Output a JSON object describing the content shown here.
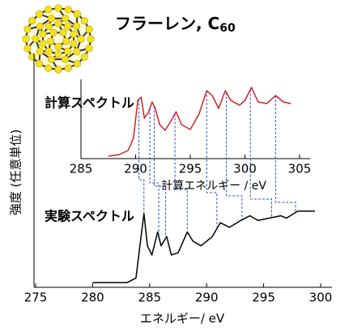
{
  "chart_data": [
    {
      "type": "line",
      "title": "フラーレン, C",
      "title_subscript": "60",
      "xlabel": "エネルギー/ eV",
      "ylabel": "強度 (任意単位)",
      "xlim": [
        275,
        300
      ],
      "xticks": [
        275,
        280,
        285,
        290,
        295,
        300
      ],
      "ylim": [
        0,
        100
      ],
      "series": [
        {
          "name": "実験スペクトル",
          "color": "#000000",
          "x": [
            280,
            283,
            283.8,
            284.2,
            284.5,
            284.8,
            285.2,
            285.7,
            286.0,
            286.5,
            286.9,
            287.5,
            288.3,
            288.8,
            289.5,
            290.5,
            291.2,
            292,
            293,
            293.8,
            294.5,
            295.5,
            296.5,
            297,
            298,
            298.8,
            299.5
          ],
          "values": [
            2,
            2,
            4,
            20,
            32,
            18,
            14,
            24,
            18,
            22,
            14,
            15,
            24,
            20,
            18,
            22,
            28,
            26,
            29,
            31,
            29,
            30,
            31,
            30,
            33,
            33,
            33
          ]
        }
      ]
    },
    {
      "type": "line",
      "xlabel": "計算エネルギー / eV",
      "xlim": [
        285,
        305
      ],
      "xticks": [
        285,
        290,
        295,
        300,
        305
      ],
      "ylim": [
        0,
        100
      ],
      "series": [
        {
          "name": "計算スペクトル",
          "color": "#d62020",
          "x": [
            287.5,
            288.5,
            289.3,
            289.8,
            290.2,
            290.5,
            290.8,
            291.2,
            291.5,
            291.8,
            292.2,
            292.7,
            293.3,
            293.7,
            294.2,
            295,
            295.8,
            296.5,
            297,
            297.6,
            298.2,
            298.7,
            299.5,
            300,
            300.6,
            301.2,
            302,
            302.8,
            303.5,
            304.2
          ],
          "values": [
            3,
            5,
            10,
            25,
            72,
            76,
            50,
            58,
            70,
            62,
            42,
            35,
            48,
            58,
            42,
            36,
            55,
            84,
            78,
            62,
            84,
            72,
            66,
            72,
            88,
            70,
            68,
            78,
            70,
            68
          ]
        }
      ],
      "link_color": "#3050c0",
      "peak_links": [
        {
          "x": 290.3,
          "exp_x": 284.5
        },
        {
          "x": 291.3,
          "exp_x": 285.8
        },
        {
          "x": 291.7,
          "exp_x": 286.4
        },
        {
          "x": 293.6,
          "exp_x": 288.3
        },
        {
          "x": 296.5,
          "exp_x": 290.9
        },
        {
          "x": 298.3,
          "exp_x": 293.1
        },
        {
          "x": 300.5,
          "exp_x": 295.7
        },
        {
          "x": 302.8,
          "exp_x": 297.8
        }
      ]
    }
  ]
}
